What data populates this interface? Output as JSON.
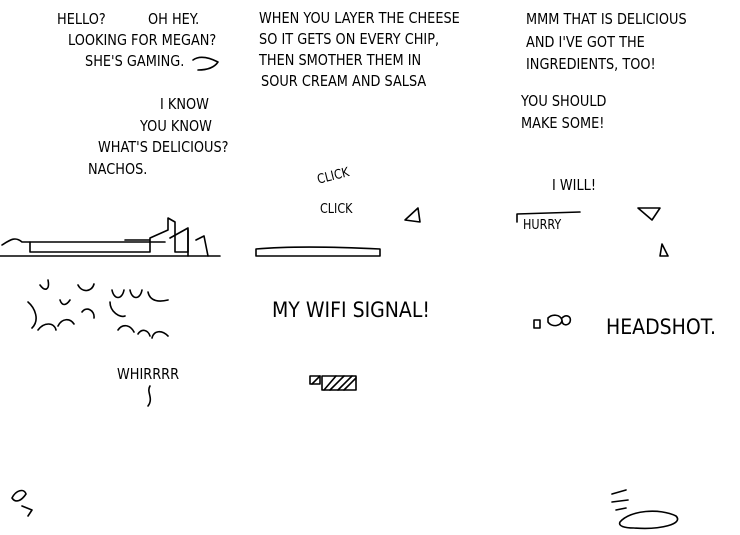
{
  "panel1": {
    "speech": [
      "HELLO?",
      "OH HEY.",
      "LOOKING FOR MEGAN?",
      "SHE'S GAMING."
    ],
    "speech2": [
      "I KNOW",
      "YOU KNOW",
      "WHAT'S DELICIOUS?",
      "NACHOS."
    ]
  },
  "panel2": {
    "speech": [
      "WHEN YOU LAYER THE CHEESE",
      "SO IT GETS ON EVERY CHIP,",
      "THEN SMOTHER THEM IN",
      "SOUR CREAM AND SALSA"
    ],
    "sfx": [
      "CLICK",
      "CLICK"
    ]
  },
  "panel3": {
    "speech": [
      "MMM THAT IS DELICIOUS",
      "AND I'VE GOT THE",
      "INGREDIENTS, TOO!"
    ],
    "speech2": [
      "YOU SHOULD",
      "MAKE SOME!"
    ],
    "reply": "I WILL!",
    "sfx": "HURRY"
  },
  "panel4": {
    "sfx": "WHIRRRR"
  },
  "panel5": {
    "speech": "MY WIFI SIGNAL!"
  },
  "panel6": {
    "speech": "HEADSHOT."
  }
}
